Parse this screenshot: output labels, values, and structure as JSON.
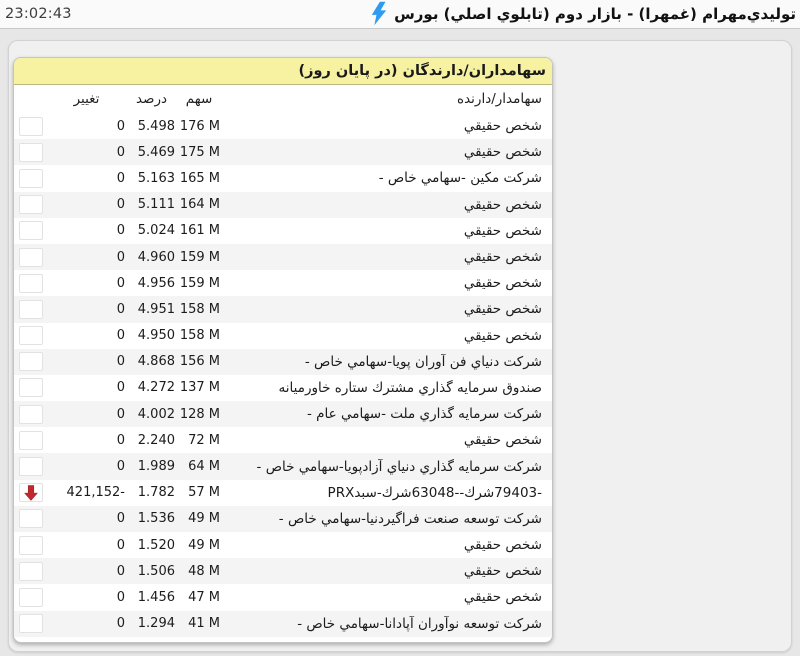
{
  "header": {
    "time": "23:02:43",
    "title": "تولیدي‌مهرام (غمهرا) - بازار دوم (تابلوي اصلي) بورس",
    "lightning_color": "#2f9bf0"
  },
  "panel": {
    "title": "سهامداران/دارندگان (در پایان روز)",
    "title_bg": "#f6f2a2",
    "columns": {
      "name": "سهامدار/دارنده",
      "shares": "سهم",
      "percent": "درصد",
      "change": "تغییر"
    },
    "colors": {
      "row_alt": "#f4f4f4",
      "arrow_red": "#c1272d"
    },
    "rows": [
      {
        "name": "شخص حقیقي",
        "shares": "176 M",
        "percent": "5.498",
        "change": "0",
        "arrow": ""
      },
      {
        "name": "شخص حقیقي",
        "shares": "175 M",
        "percent": "5.469",
        "change": "0",
        "arrow": ""
      },
      {
        "name": "شرکت مکین -سهامي خاص -",
        "shares": "165 M",
        "percent": "5.163",
        "change": "0",
        "arrow": ""
      },
      {
        "name": "شخص حقیقي",
        "shares": "164 M",
        "percent": "5.111",
        "change": "0",
        "arrow": ""
      },
      {
        "name": "شخص حقیقي",
        "shares": "161 M",
        "percent": "5.024",
        "change": "0",
        "arrow": ""
      },
      {
        "name": "شخص حقیقي",
        "shares": "159 M",
        "percent": "4.960",
        "change": "0",
        "arrow": ""
      },
      {
        "name": "شخص حقیقي",
        "shares": "159 M",
        "percent": "4.956",
        "change": "0",
        "arrow": ""
      },
      {
        "name": "شخص حقیقي",
        "shares": "158 M",
        "percent": "4.951",
        "change": "0",
        "arrow": ""
      },
      {
        "name": "شخص حقیقي",
        "shares": "158 M",
        "percent": "4.950",
        "change": "0",
        "arrow": ""
      },
      {
        "name": "شرکت دنیاي فن آوران پویا-سهامي خاص -",
        "shares": "156 M",
        "percent": "4.868",
        "change": "0",
        "arrow": ""
      },
      {
        "name": "صندوق سرمایه گذاري مشترك ستاره خاورمیانه",
        "shares": "137 M",
        "percent": "4.272",
        "change": "0",
        "arrow": ""
      },
      {
        "name": "شرکت سرمایه گذاري ملت -سهامي عام -",
        "shares": "128 M",
        "percent": "4.002",
        "change": "0",
        "arrow": ""
      },
      {
        "name": "شخص حقیقي",
        "shares": "72 M",
        "percent": "2.240",
        "change": "0",
        "arrow": ""
      },
      {
        "name": "شرکت سرمایه گذاري دنیاي آزادپویا-سهامي خاص -",
        "shares": "64 M",
        "percent": "1.989",
        "change": "0",
        "arrow": ""
      },
      {
        "name": "PRX‎سبد‎-شرك‎63048--شرك‎79403-",
        "name_dir": "ltr",
        "shares": "57 M",
        "percent": "1.782",
        "change": "-421,152",
        "arrow": "down"
      },
      {
        "name": "شرکت توسعه صنعت فراگیردنیا-سهامي خاص -",
        "shares": "49 M",
        "percent": "1.536",
        "change": "0",
        "arrow": ""
      },
      {
        "name": "شخص حقیقي",
        "shares": "49 M",
        "percent": "1.520",
        "change": "0",
        "arrow": ""
      },
      {
        "name": "شخص حقیقي",
        "shares": "48 M",
        "percent": "1.506",
        "change": "0",
        "arrow": ""
      },
      {
        "name": "شخص حقیقي",
        "shares": "47 M",
        "percent": "1.456",
        "change": "0",
        "arrow": ""
      },
      {
        "name": "شرکت توسعه نوآوران آپادانا-سهامي خاص -",
        "shares": "41 M",
        "percent": "1.294",
        "change": "0",
        "arrow": ""
      }
    ]
  }
}
